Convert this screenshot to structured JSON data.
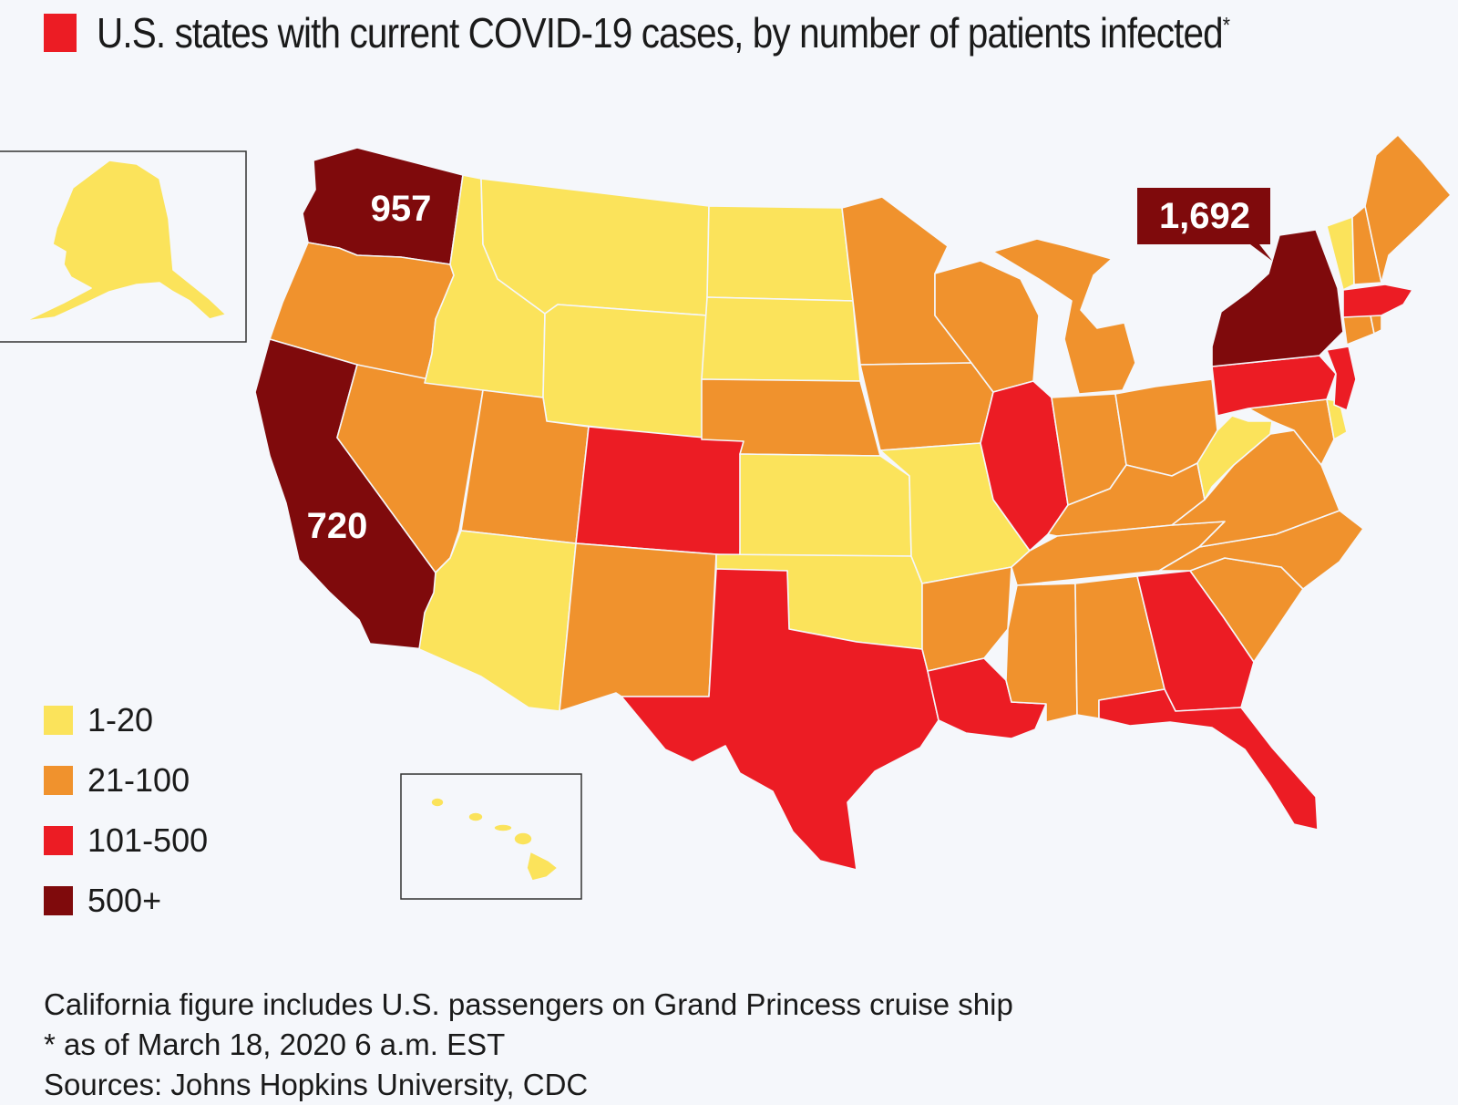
{
  "title": {
    "text": "U.S. states with current COVID-19 cases, by number of patients infected",
    "asterisk": "*"
  },
  "colors": {
    "accent": "#ec1c24",
    "tier_1_20": "#fbe35b",
    "tier_21_100": "#f0922d",
    "tier_101_500": "#ec1c24",
    "tier_500_plus": "#7f0a0c"
  },
  "map_data": {
    "type": "choropleth",
    "region": "United States",
    "callouts": [
      {
        "state": "Washington",
        "value": "957"
      },
      {
        "state": "California",
        "value": "720"
      },
      {
        "state": "New York",
        "value": "1,692"
      }
    ],
    "state_tiers": {
      "Washington": "500+",
      "California": "500+",
      "New York": "500+",
      "Colorado": "101-500",
      "Texas": "101-500",
      "Louisiana": "101-500",
      "Illinois": "101-500",
      "Georgia": "101-500",
      "Florida": "101-500",
      "Pennsylvania": "101-500",
      "New Jersey": "101-500",
      "Massachusetts": "101-500",
      "Oregon": "21-100",
      "Nevada": "21-100",
      "Utah": "21-100",
      "New Mexico": "21-100",
      "Nebraska": "21-100",
      "Minnesota": "21-100",
      "Iowa": "21-100",
      "Wisconsin": "21-100",
      "Michigan": "21-100",
      "Arkansas": "21-100",
      "Mississippi": "21-100",
      "Alabama": "21-100",
      "Tennessee": "21-100",
      "Kentucky": "21-100",
      "Indiana": "21-100",
      "Ohio": "21-100",
      "Virginia": "21-100",
      "North Carolina": "21-100",
      "South Carolina": "21-100",
      "Maryland": "21-100",
      "Connecticut": "21-100",
      "New Hampshire": "21-100",
      "Maine": "21-100",
      "Rhode Island": "21-100",
      "Idaho": "1-20",
      "Montana": "1-20",
      "Wyoming": "1-20",
      "North Dakota": "1-20",
      "South Dakota": "1-20",
      "Kansas": "1-20",
      "Oklahoma": "1-20",
      "Missouri": "1-20",
      "Arizona": "1-20",
      "West Virginia": "1-20",
      "Vermont": "1-20",
      "Delaware": "1-20",
      "Alaska": "1-20",
      "Hawaii": "1-20"
    }
  },
  "legend": [
    {
      "label": "1-20",
      "color": "#fbe35b"
    },
    {
      "label": "21-100",
      "color": "#f0922d"
    },
    {
      "label": "101-500",
      "color": "#ec1c24"
    },
    {
      "label": "500+",
      "color": "#7f0a0c"
    }
  ],
  "footnotes": {
    "line1": "California figure includes U.S. passengers on Grand Princess cruise ship",
    "line2": "* as of March 18, 2020 6 a.m. EST",
    "line3": "Sources: Johns Hopkins University, CDC"
  }
}
